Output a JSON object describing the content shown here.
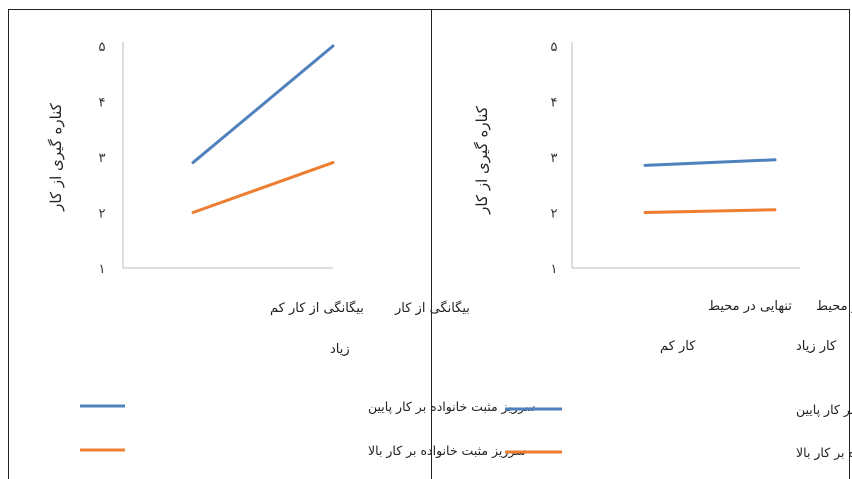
{
  "chart_data": [
    {
      "type": "line",
      "ylabel": "کناره گیری از کار",
      "ylim": [
        1,
        5
      ],
      "yticks": [
        "۱",
        "۲",
        "۳",
        "۴",
        "۵"
      ],
      "categories": [
        "بیگانگی از کار کم",
        "بیگانگی از کار زیاد"
      ],
      "series": [
        {
          "name": "سرریز مثبت خانواده بر کار پایین",
          "color": "#4f81bd",
          "values": [
            2.9,
            5.0
          ]
        },
        {
          "name": "سرریز مثبت خانواده بر کار بالا",
          "color": "#ed7d31",
          "values": [
            2.0,
            2.9
          ]
        }
      ],
      "grid": false,
      "legend": "bottom"
    },
    {
      "type": "line",
      "ylabel": "کناره گیری از کار",
      "ylim": [
        1,
        5
      ],
      "yticks": [
        "۱",
        "۲",
        "۳",
        "۴",
        "۵"
      ],
      "categories": [
        "تنهایی در محیط کار کم",
        "تنهایی در محیط کار زیاد"
      ],
      "series": [
        {
          "name": "سرریز مثبت خانواده بر کار پایین",
          "color": "#4f81bd",
          "values": [
            2.85,
            2.95
          ]
        },
        {
          "name": "سرریز مثبت خانواده بر کار بالا",
          "color": "#ed7d31",
          "values": [
            2.0,
            2.05
          ]
        }
      ],
      "grid": false,
      "legend": "bottom"
    }
  ]
}
